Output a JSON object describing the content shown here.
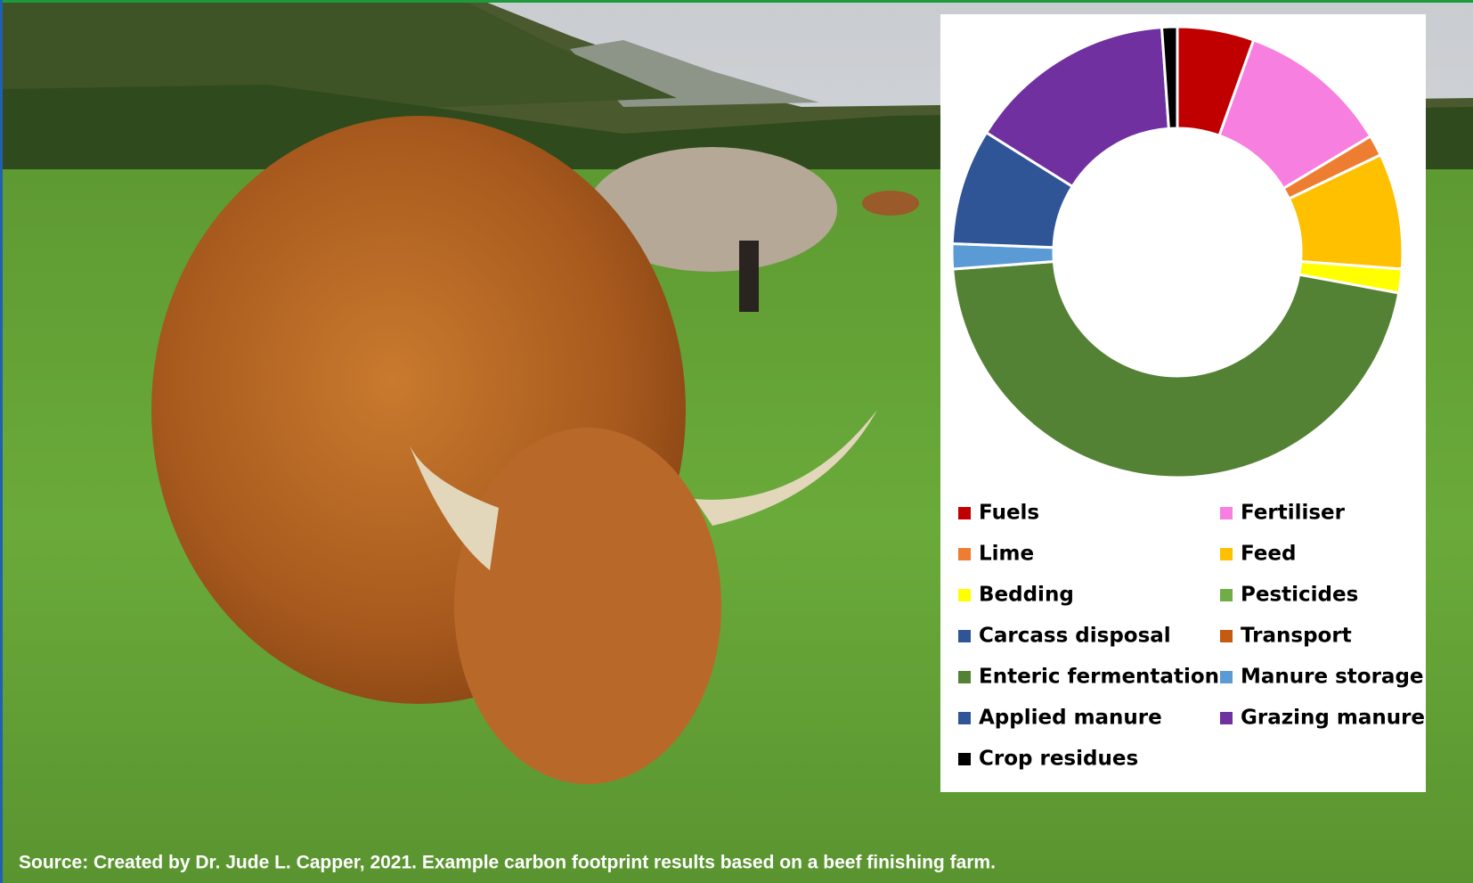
{
  "chart_data": {
    "type": "donut",
    "categories": [
      "Fuels",
      "Fertiliser",
      "Lime",
      "Feed",
      "Bedding",
      "Pesticides",
      "Carcass disposal",
      "Transport",
      "Enteric fermentation",
      "Manure storage",
      "Applied manure",
      "Grazing manure",
      "Crop residues"
    ],
    "values": [
      5.5,
      10.9,
      1.5,
      8.3,
      1.7,
      0,
      0,
      0,
      45.9,
      1.8,
      8.3,
      15,
      1.1
    ],
    "colors": [
      "#c00000",
      "#f77fe0",
      "#ed7d31",
      "#ffc000",
      "#ffff00",
      "#70ad47",
      "#2f5597",
      "#c55a11",
      "#548235",
      "#5b9bd5",
      "#2f5597",
      "#7030a0",
      "#000000"
    ],
    "legend": "bottom"
  },
  "source": "Source: Created by Dr. Jude L. Capper, 2021. Example carbon footprint results based on a beef finishing farm."
}
